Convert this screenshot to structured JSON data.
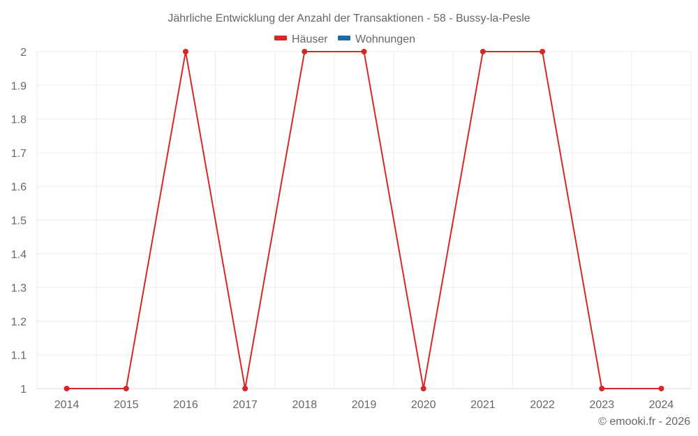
{
  "chart_data": {
    "type": "line",
    "title": "Jährliche Entwicklung der Anzahl der Transaktionen - 58 - Bussy-la-Pesle",
    "xlabel": "",
    "ylabel": "",
    "categories": [
      "2014",
      "2015",
      "2016",
      "2017",
      "2018",
      "2019",
      "2020",
      "2021",
      "2022",
      "2023",
      "2024"
    ],
    "series": [
      {
        "name": "Häuser",
        "color": "#d62728",
        "values": [
          1,
          1,
          2,
          1,
          2,
          2,
          1,
          2,
          2,
          1,
          1
        ]
      },
      {
        "name": "Wohnungen",
        "color": "#1f6aa5",
        "values": []
      }
    ],
    "ylim": [
      1,
      2
    ],
    "yticks": [
      "1",
      "1.1",
      "1.2",
      "1.3",
      "1.4",
      "1.5",
      "1.6",
      "1.7",
      "1.8",
      "1.9",
      "2"
    ],
    "grid": true,
    "legend_position": "top"
  },
  "credit": "© emooki.fr - 2026"
}
